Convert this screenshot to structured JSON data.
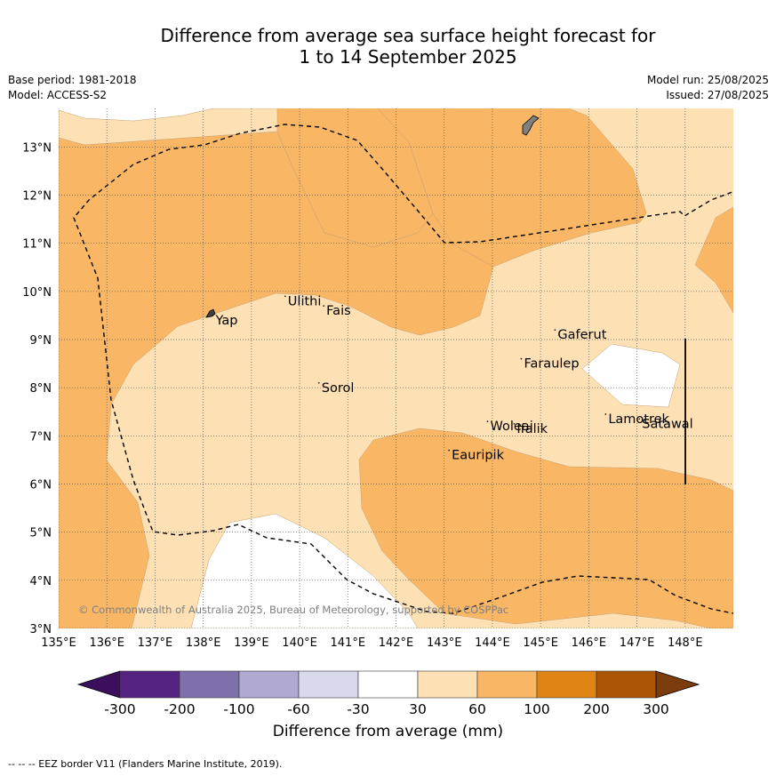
{
  "title_line1": "Difference from average sea surface height forecast for",
  "title_line2": "1 to 14 September 2025",
  "meta_left": [
    "Base period: 1981-2018",
    "Model: ACCESS-S2"
  ],
  "meta_right": [
    "Model run: 25/08/2025",
    "Issued: 27/08/2025"
  ],
  "copyright": "© Commonwealth of Australia 2025, Bureau of Meteorology, supported by COSPPac",
  "footnote": "--  --  -- EEZ border V11 (Flanders Marine Institute, 2019).",
  "map": {
    "lon_range": [
      135,
      149
    ],
    "lat_range": [
      3,
      13.8
    ],
    "lon_ticks": [
      "135°E",
      "136°E",
      "137°E",
      "138°E",
      "139°E",
      "140°E",
      "141°E",
      "142°E",
      "143°E",
      "144°E",
      "145°E",
      "146°E",
      "147°E",
      "148°E"
    ],
    "lat_ticks": [
      "3°N",
      "4°N",
      "5°N",
      "6°N",
      "7°N",
      "8°N",
      "9°N",
      "10°N",
      "11°N",
      "12°N",
      "13°N"
    ],
    "places": [
      {
        "name": "Yap",
        "lon": 138.2,
        "lat": 9.5
      },
      {
        "name": "Ulithi",
        "lon": 139.7,
        "lat": 9.9
      },
      {
        "name": "Fais",
        "lon": 140.5,
        "lat": 9.7
      },
      {
        "name": "Gaferut",
        "lon": 145.3,
        "lat": 9.2
      },
      {
        "name": "Faraulep",
        "lon": 144.6,
        "lat": 8.6
      },
      {
        "name": "Sorol",
        "lon": 140.4,
        "lat": 8.1
      },
      {
        "name": "Woleai",
        "lon": 143.9,
        "lat": 7.3
      },
      {
        "name": "Ifalik",
        "lon": 144.45,
        "lat": 7.25
      },
      {
        "name": "Lamotrek",
        "lon": 146.35,
        "lat": 7.45
      },
      {
        "name": "Satawal",
        "lon": 147.05,
        "lat": 7.35
      },
      {
        "name": "Eauripik",
        "lon": 143.1,
        "lat": 6.7
      }
    ]
  },
  "colorbar": {
    "title": "Difference from average (mm)",
    "ticks": [
      "-300",
      "-200",
      "-100",
      "-60",
      "-30",
      "30",
      "60",
      "100",
      "200",
      "300"
    ],
    "colors": [
      "#3b0f5c",
      "#53237f",
      "#7f70ab",
      "#b0a9d2",
      "#d9d9ec",
      "#ffffff",
      "#fde0b4",
      "#f9b765",
      "#e08514",
      "#ad5507",
      "#7d3c0c"
    ]
  },
  "legend_colors": {
    "band_30_60": "#fde0b4",
    "band_60_100": "#f9b765",
    "below_30": "#ffffff"
  }
}
